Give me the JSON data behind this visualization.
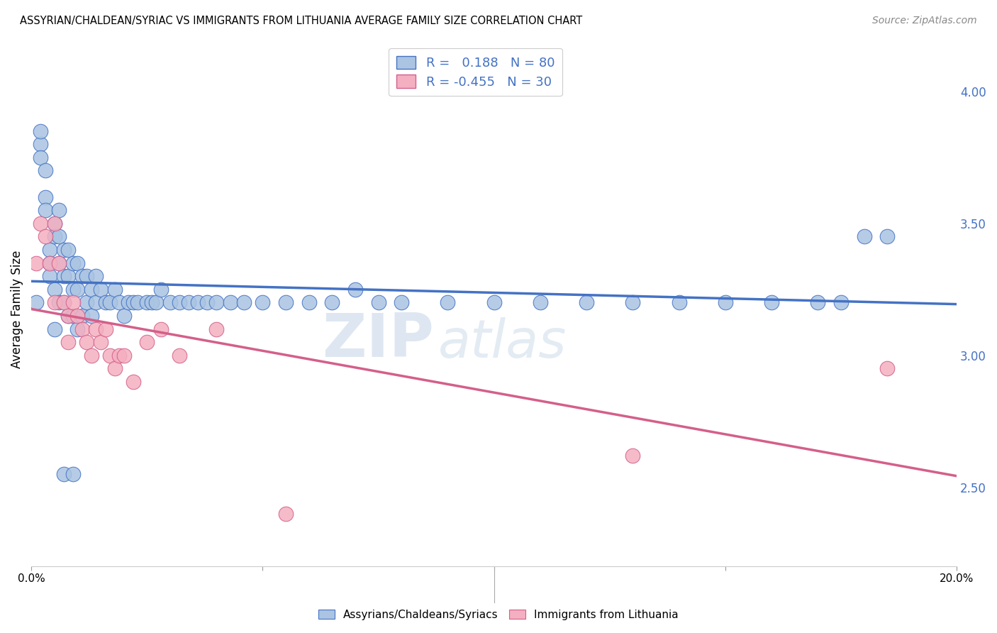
{
  "title": "ASSYRIAN/CHALDEAN/SYRIAC VS IMMIGRANTS FROM LITHUANIA AVERAGE FAMILY SIZE CORRELATION CHART",
  "source": "Source: ZipAtlas.com",
  "ylabel": "Average Family Size",
  "xlim": [
    0.0,
    0.2
  ],
  "ylim": [
    2.2,
    4.15
  ],
  "yticks_right": [
    2.5,
    3.0,
    3.5,
    4.0
  ],
  "blue_R": 0.188,
  "blue_N": 80,
  "pink_R": -0.455,
  "pink_N": 30,
  "blue_color": "#aac4e2",
  "blue_line_color": "#4472c4",
  "pink_color": "#f4afc0",
  "pink_line_color": "#d45f8a",
  "blue_scatter_x": [
    0.001,
    0.002,
    0.002,
    0.003,
    0.003,
    0.004,
    0.004,
    0.004,
    0.005,
    0.005,
    0.005,
    0.006,
    0.006,
    0.006,
    0.006,
    0.007,
    0.007,
    0.007,
    0.008,
    0.008,
    0.008,
    0.009,
    0.009,
    0.009,
    0.01,
    0.01,
    0.01,
    0.011,
    0.011,
    0.012,
    0.012,
    0.013,
    0.013,
    0.014,
    0.014,
    0.015,
    0.016,
    0.017,
    0.018,
    0.019,
    0.02,
    0.021,
    0.022,
    0.023,
    0.025,
    0.026,
    0.027,
    0.028,
    0.03,
    0.032,
    0.034,
    0.036,
    0.038,
    0.04,
    0.043,
    0.046,
    0.05,
    0.055,
    0.06,
    0.065,
    0.07,
    0.075,
    0.08,
    0.09,
    0.1,
    0.11,
    0.12,
    0.13,
    0.14,
    0.15,
    0.16,
    0.17,
    0.175,
    0.18,
    0.002,
    0.003,
    0.005,
    0.007,
    0.009,
    0.185
  ],
  "blue_scatter_y": [
    3.2,
    3.8,
    3.75,
    3.6,
    3.55,
    3.4,
    3.35,
    3.3,
    3.5,
    3.45,
    3.25,
    3.55,
    3.45,
    3.35,
    3.2,
    3.4,
    3.3,
    3.2,
    3.4,
    3.3,
    3.15,
    3.35,
    3.25,
    3.15,
    3.35,
    3.25,
    3.1,
    3.3,
    3.15,
    3.3,
    3.2,
    3.25,
    3.15,
    3.3,
    3.2,
    3.25,
    3.2,
    3.2,
    3.25,
    3.2,
    3.15,
    3.2,
    3.2,
    3.2,
    3.2,
    3.2,
    3.2,
    3.25,
    3.2,
    3.2,
    3.2,
    3.2,
    3.2,
    3.2,
    3.2,
    3.2,
    3.2,
    3.2,
    3.2,
    3.2,
    3.25,
    3.2,
    3.2,
    3.2,
    3.2,
    3.2,
    3.2,
    3.2,
    3.2,
    3.2,
    3.2,
    3.2,
    3.2,
    3.45,
    3.85,
    3.7,
    3.1,
    2.55,
    2.55,
    3.45
  ],
  "pink_scatter_x": [
    0.001,
    0.002,
    0.003,
    0.004,
    0.005,
    0.005,
    0.006,
    0.007,
    0.008,
    0.008,
    0.009,
    0.01,
    0.011,
    0.012,
    0.013,
    0.014,
    0.015,
    0.016,
    0.017,
    0.018,
    0.019,
    0.02,
    0.022,
    0.025,
    0.028,
    0.032,
    0.04,
    0.055,
    0.13,
    0.185
  ],
  "pink_scatter_y": [
    3.35,
    3.5,
    3.45,
    3.35,
    3.2,
    3.5,
    3.35,
    3.2,
    3.15,
    3.05,
    3.2,
    3.15,
    3.1,
    3.05,
    3.0,
    3.1,
    3.05,
    3.1,
    3.0,
    2.95,
    3.0,
    3.0,
    2.9,
    3.05,
    3.1,
    3.0,
    3.1,
    2.4,
    2.62,
    2.95
  ],
  "watermark_zip": "ZIP",
  "watermark_atlas": "atlas",
  "legend_labels": [
    "Assyrians/Chaldeans/Syriacs",
    "Immigrants from Lithuania"
  ],
  "background_color": "#ffffff",
  "grid_color": "#cccccc"
}
